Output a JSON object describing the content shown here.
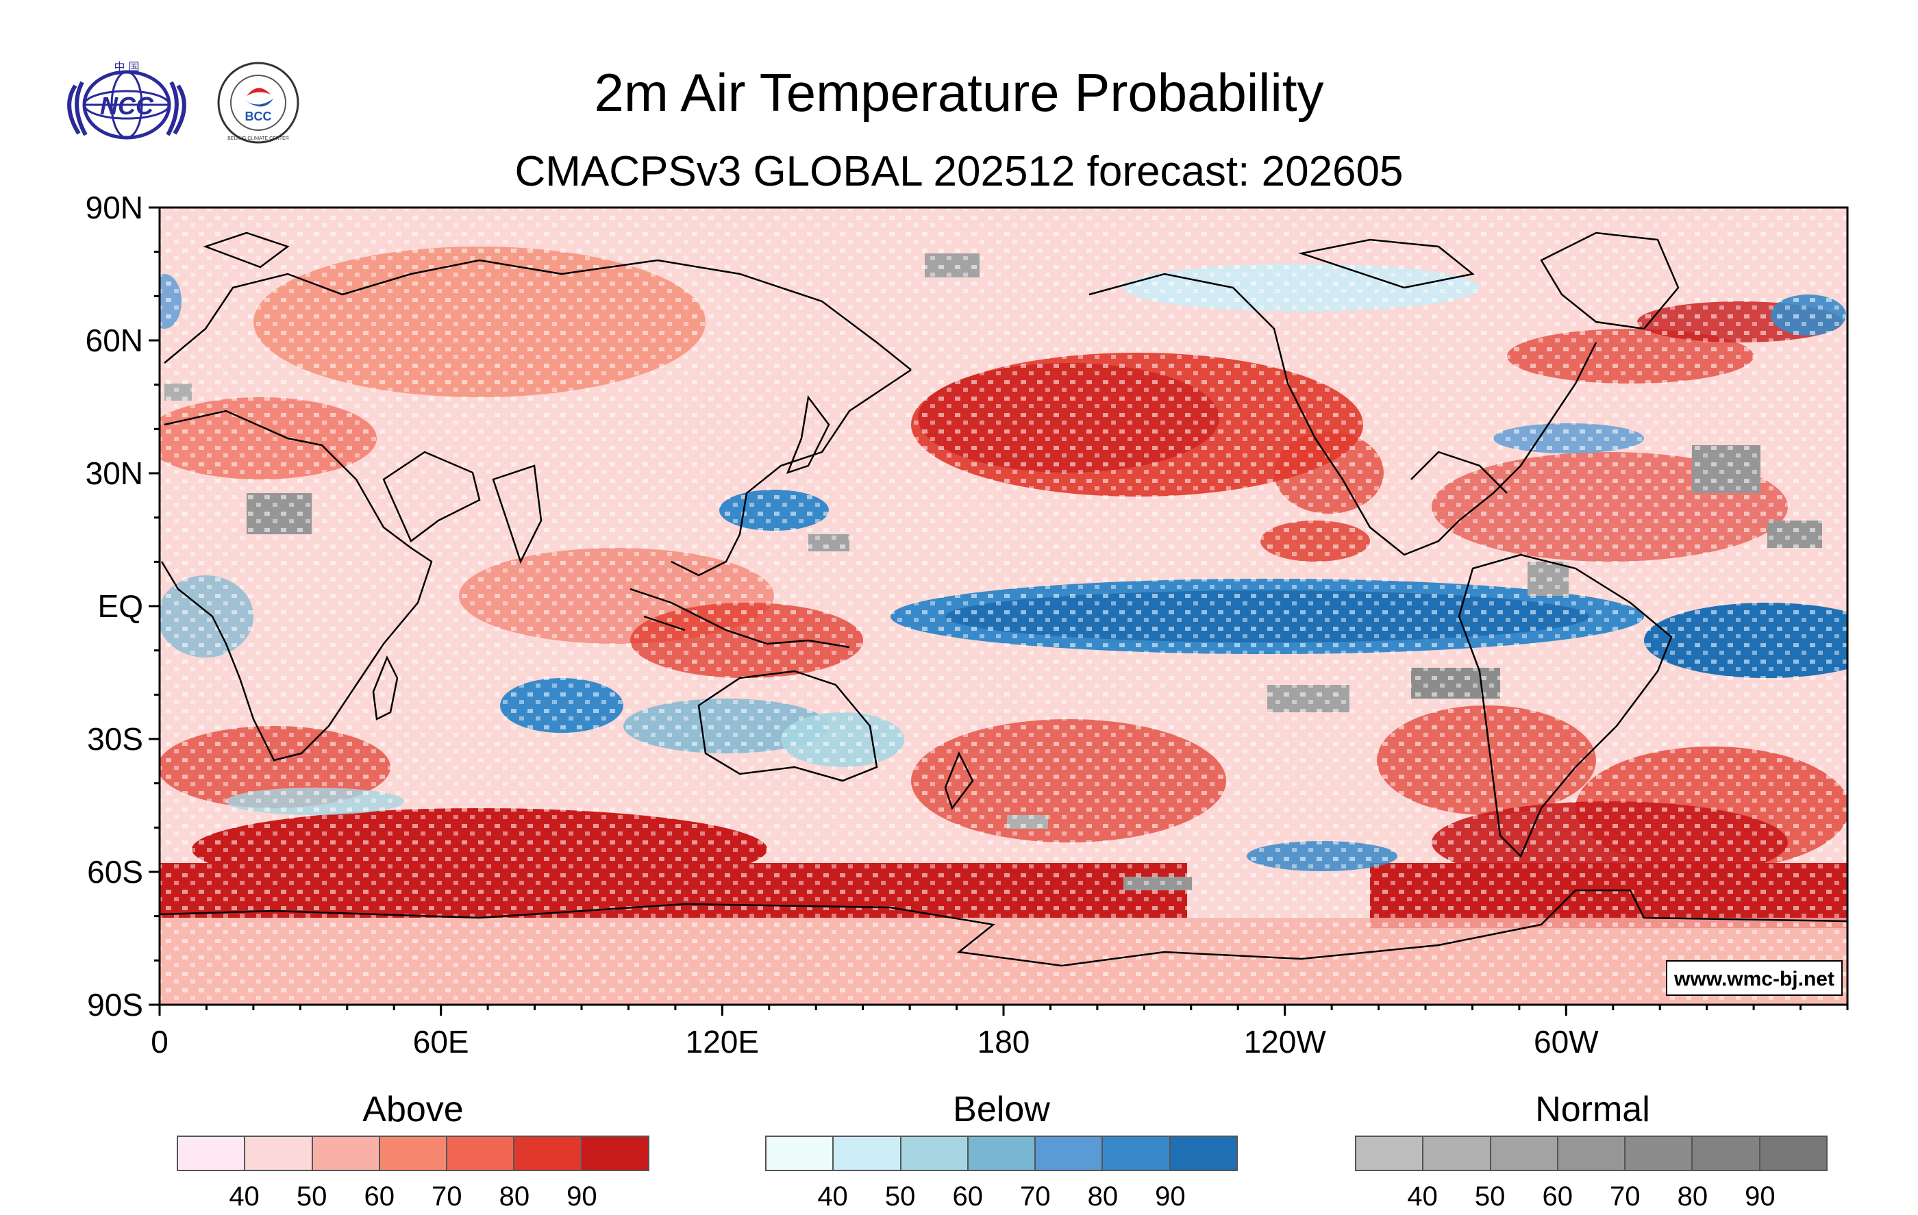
{
  "title": "2m Air Temperature Probability",
  "subtitle": "CMACPSv3 GLOBAL 202512 forecast: 202605",
  "logos": {
    "ncc": "NCC",
    "ncc_top": "中 国",
    "bcc": "BCC",
    "bcc_ring": "BEIJING CLIMATE CENTER"
  },
  "map": {
    "lat_labels": [
      "90N",
      "60N",
      "30N",
      "EQ",
      "30S",
      "60S",
      "90S"
    ],
    "lon_labels": [
      "0",
      "60E",
      "120E",
      "180",
      "120W",
      "60W"
    ],
    "watermark": "www.wmc-bj.net",
    "ocean_color": "#fbd8d6",
    "coast_color": "#000000"
  },
  "legends": [
    {
      "title": "Above",
      "colors": [
        "#fde8f4",
        "#fcd9d9",
        "#f9b1a7",
        "#f6876f",
        "#f06652",
        "#e0392b",
        "#c81c1c"
      ],
      "labels": [
        "40",
        "50",
        "60",
        "70",
        "80",
        "90"
      ]
    },
    {
      "title": "Below",
      "colors": [
        "#eefbfb",
        "#ccecf6",
        "#a6d6e2",
        "#79b6d2",
        "#5a9bd6",
        "#3889c9",
        "#1f6fb5"
      ],
      "labels": [
        "40",
        "50",
        "60",
        "70",
        "80",
        "90"
      ]
    },
    {
      "title": "Normal",
      "colors": [
        "#bdbdbd",
        "#b0b0b0",
        "#a3a3a3",
        "#969696",
        "#8c8c8c",
        "#828282",
        "#787878"
      ],
      "labels": [
        "40",
        "50",
        "60",
        "70",
        "80",
        "90"
      ]
    }
  ]
}
